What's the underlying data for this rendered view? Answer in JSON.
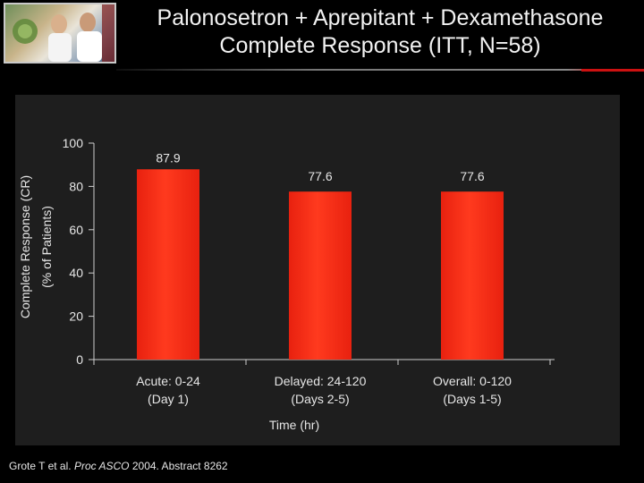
{
  "header": {
    "title_line_1": "Palonosetron + Aprepitant + Dexamethasone",
    "title_line_2": "Complete Response (ITT, N=58)"
  },
  "citation": {
    "authors": "Grote T et al.",
    "journal": "Proc ASCO",
    "details": "2004. Abstract 8262"
  },
  "colors": {
    "bar": "#e8210f",
    "bar_highlight": "#ff3a1e",
    "panel_background": "#1e1e1e",
    "text": "#e6e6e6",
    "axis": "#cfcfcf"
  },
  "chart_data": {
    "type": "bar",
    "categories": [
      [
        "Acute: 0-24",
        "(Day 1)"
      ],
      [
        "Delayed: 24-120",
        "(Days 2-5)"
      ],
      [
        "Overall: 0-120",
        "(Days 1-5)"
      ]
    ],
    "values": [
      87.9,
      77.6,
      77.6
    ],
    "data_labels": [
      "87.9",
      "77.6",
      "77.6"
    ],
    "xlabel": "Time (hr)",
    "ylabel_lines": [
      "Complete Response (CR)",
      "(% of Patients)"
    ],
    "ylim": [
      0,
      100
    ],
    "yticks": [
      0,
      20,
      40,
      60,
      80,
      100
    ],
    "grid": false,
    "legend": "none"
  }
}
